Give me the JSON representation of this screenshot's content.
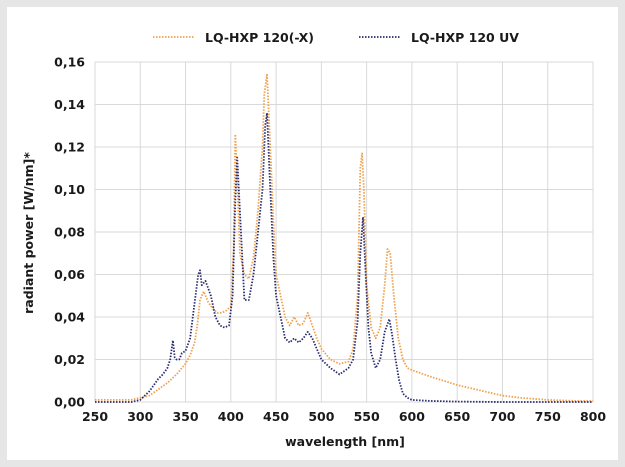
{
  "chart_data": {
    "type": "line",
    "xlabel": "wavelength [nm]",
    "ylabel": "radiant power [W/nm]*",
    "xlim": [
      250,
      800
    ],
    "ylim": [
      0,
      0.16
    ],
    "x_ticks": [
      "250",
      "300",
      "350",
      "400",
      "450",
      "500",
      "550",
      "600",
      "650",
      "700",
      "750",
      "800"
    ],
    "y_ticks": [
      "0,00",
      "0,02",
      "0,04",
      "0,06",
      "0,08",
      "0,10",
      "0,12",
      "0,14",
      "0,16"
    ],
    "grid": true,
    "legend_position": "top",
    "series": [
      {
        "name": "LQ-HXP 120(-X)",
        "color": "#f0a04b",
        "style": "dotted",
        "x": [
          250,
          270,
          290,
          300,
          310,
          320,
          330,
          340,
          350,
          355,
          360,
          363,
          366,
          370,
          375,
          380,
          385,
          390,
          395,
          400,
          403,
          405,
          407,
          410,
          415,
          420,
          425,
          430,
          435,
          437,
          440,
          443,
          447,
          450,
          455,
          460,
          465,
          470,
          475,
          480,
          485,
          490,
          495,
          500,
          510,
          520,
          530,
          535,
          540,
          543,
          545,
          547,
          550,
          555,
          560,
          565,
          570,
          573,
          576,
          580,
          585,
          590,
          595,
          600,
          620,
          650,
          680,
          700,
          720,
          750,
          780,
          800
        ],
        "values": [
          0.001,
          0.001,
          0.001,
          0.002,
          0.003,
          0.006,
          0.009,
          0.013,
          0.018,
          0.022,
          0.028,
          0.036,
          0.048,
          0.052,
          0.047,
          0.044,
          0.042,
          0.042,
          0.043,
          0.045,
          0.07,
          0.126,
          0.105,
          0.07,
          0.06,
          0.058,
          0.068,
          0.09,
          0.12,
          0.145,
          0.154,
          0.125,
          0.085,
          0.06,
          0.05,
          0.04,
          0.036,
          0.04,
          0.036,
          0.037,
          0.042,
          0.036,
          0.03,
          0.025,
          0.02,
          0.018,
          0.019,
          0.025,
          0.05,
          0.11,
          0.117,
          0.1,
          0.055,
          0.035,
          0.03,
          0.035,
          0.055,
          0.072,
          0.07,
          0.05,
          0.03,
          0.02,
          0.016,
          0.015,
          0.012,
          0.008,
          0.005,
          0.003,
          0.002,
          0.001,
          0.0005,
          0.0005
        ]
      },
      {
        "name": "LQ-HXP 120 UV",
        "color": "#2a2c6e",
        "style": "dotted",
        "x": [
          250,
          270,
          290,
          300,
          305,
          310,
          315,
          320,
          325,
          330,
          333,
          336,
          338,
          340,
          343,
          346,
          350,
          355,
          358,
          361,
          364,
          366,
          368,
          372,
          378,
          383,
          388,
          393,
          398,
          402,
          405,
          407,
          410,
          415,
          420,
          425,
          430,
          435,
          438,
          440,
          443,
          447,
          450,
          455,
          460,
          465,
          470,
          475,
          480,
          485,
          490,
          495,
          500,
          510,
          520,
          530,
          535,
          540,
          543,
          546,
          549,
          552,
          555,
          560,
          565,
          570,
          575,
          578,
          582,
          586,
          590,
          595,
          600,
          620,
          650,
          700,
          750,
          800
        ],
        "values": [
          0.0,
          0.0,
          0.0,
          0.001,
          0.003,
          0.005,
          0.008,
          0.011,
          0.013,
          0.016,
          0.02,
          0.029,
          0.021,
          0.02,
          0.02,
          0.023,
          0.024,
          0.03,
          0.04,
          0.05,
          0.06,
          0.062,
          0.055,
          0.057,
          0.05,
          0.04,
          0.036,
          0.035,
          0.036,
          0.05,
          0.095,
          0.115,
          0.09,
          0.048,
          0.048,
          0.06,
          0.08,
          0.1,
          0.13,
          0.136,
          0.105,
          0.068,
          0.05,
          0.04,
          0.03,
          0.028,
          0.03,
          0.028,
          0.03,
          0.033,
          0.03,
          0.025,
          0.02,
          0.016,
          0.013,
          0.016,
          0.02,
          0.038,
          0.07,
          0.087,
          0.06,
          0.035,
          0.023,
          0.016,
          0.02,
          0.033,
          0.039,
          0.032,
          0.02,
          0.01,
          0.004,
          0.002,
          0.001,
          0.0005,
          0.0002,
          0.0,
          0.0,
          0.0
        ]
      }
    ]
  }
}
